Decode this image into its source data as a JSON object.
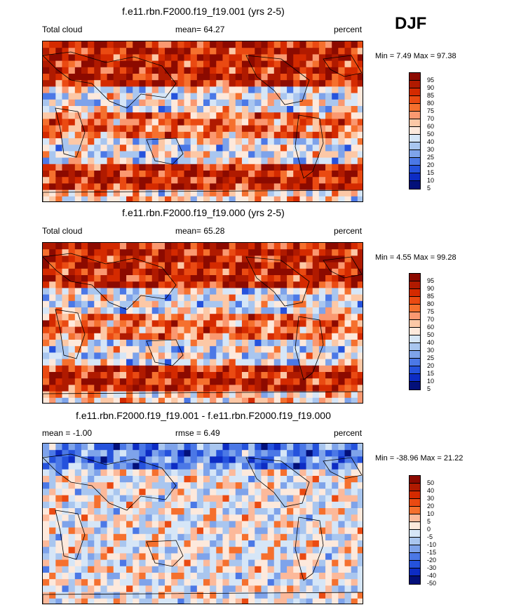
{
  "season": "DJF",
  "chart_data": [
    {
      "type": "heatmap",
      "title": "f.e11.rbn.F2000.f19_f19.001 (yrs 2-5)",
      "left_label": "Total cloud",
      "center_label": "mean=  64.27",
      "right_label": "percent",
      "minmax": "Min =   7.49 Max =  97.38",
      "levels": [
        "95",
        "90",
        "85",
        "80",
        "75",
        "70",
        "60",
        "50",
        "40",
        "30",
        "25",
        "20",
        "15",
        "10",
        "5"
      ],
      "colors": [
        "#8c0a00",
        "#b01a00",
        "#d42a00",
        "#ea4a12",
        "#f5702e",
        "#fa9870",
        "#fcc8a6",
        "#fde9dc",
        "#d6e6f7",
        "#a9c6ef",
        "#7ea3ea",
        "#4b78e6",
        "#2552dc",
        "#0d2cc4",
        "#03107a"
      ]
    },
    {
      "type": "heatmap",
      "title": "f.e11.rbn.F2000.f19_f19.000 (yrs 2-5)",
      "left_label": "Total cloud",
      "center_label": "mean=  65.28",
      "right_label": "percent",
      "minmax": "Min =   4.55 Max =  99.28",
      "levels": [
        "95",
        "90",
        "85",
        "80",
        "75",
        "70",
        "60",
        "50",
        "40",
        "30",
        "25",
        "20",
        "15",
        "10",
        "5"
      ],
      "colors": [
        "#8c0a00",
        "#b01a00",
        "#d42a00",
        "#ea4a12",
        "#f5702e",
        "#fa9870",
        "#fcc8a6",
        "#fde9dc",
        "#d6e6f7",
        "#a9c6ef",
        "#7ea3ea",
        "#4b78e6",
        "#2552dc",
        "#0d2cc4",
        "#03107a"
      ]
    },
    {
      "type": "heatmap",
      "title": "f.e11.rbn.F2000.f19_f19.001 - f.e11.rbn.F2000.f19_f19.000",
      "left_label": "mean =  -1.00",
      "center_label": "rmse =   6.49",
      "right_label": "percent",
      "minmax": "Min = -38.96 Max =  21.22",
      "levels": [
        "50",
        "40",
        "30",
        "20",
        "10",
        "5",
        "0",
        "-5",
        "-10",
        "-15",
        "-20",
        "-30",
        "-40",
        "-50"
      ],
      "colors": [
        "#8c0a00",
        "#b01a00",
        "#d42a00",
        "#ea4a12",
        "#f5702e",
        "#fcb99a",
        "#fde9dc",
        "#d6e6f7",
        "#a9c6ef",
        "#7ea3ea",
        "#4b78e6",
        "#2552dc",
        "#0d2cc4",
        "#03107a"
      ]
    }
  ]
}
